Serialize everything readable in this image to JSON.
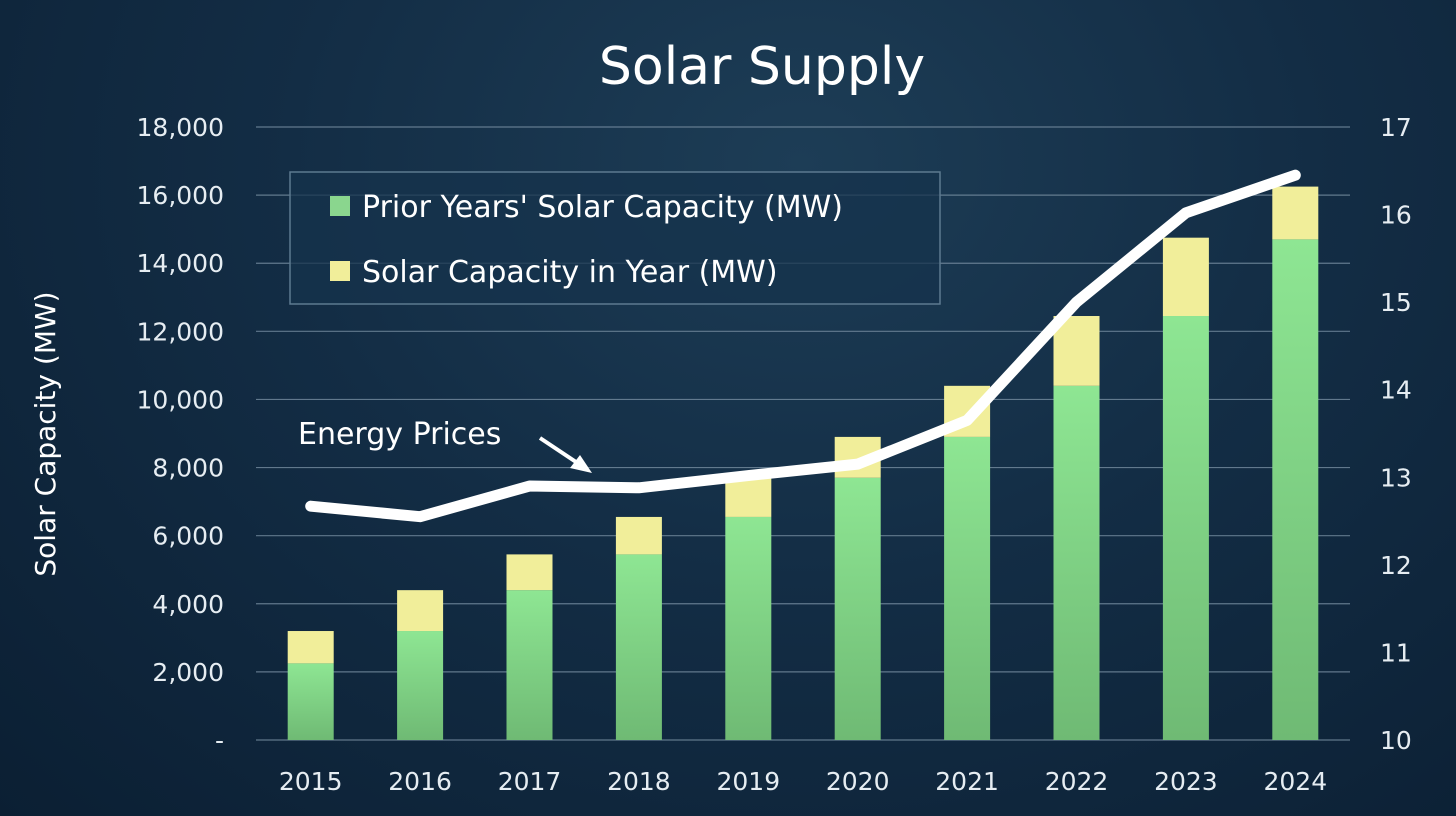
{
  "chart_data": {
    "type": "bar",
    "title": "Solar Supply",
    "ylabel": "Solar Capacity (MW)",
    "xlabel": "",
    "categories": [
      "2015",
      "2016",
      "2017",
      "2018",
      "2019",
      "2020",
      "2021",
      "2022",
      "2023",
      "2024"
    ],
    "stacked": true,
    "ylim": [
      0,
      18000
    ],
    "y_ticks": [
      {
        "value": 0,
        "label": "-"
      },
      {
        "value": 2000,
        "label": "2,000"
      },
      {
        "value": 4000,
        "label": "4,000"
      },
      {
        "value": 6000,
        "label": "6,000"
      },
      {
        "value": 8000,
        "label": "8,000"
      },
      {
        "value": 10000,
        "label": "10,000"
      },
      {
        "value": 12000,
        "label": "12,000"
      },
      {
        "value": 14000,
        "label": "14,000"
      },
      {
        "value": 16000,
        "label": "16,000"
      },
      {
        "value": 18000,
        "label": "18,000"
      }
    ],
    "y2lim": [
      10,
      17
    ],
    "y2_ticks": [
      "10",
      "11",
      "12",
      "13",
      "14",
      "15",
      "16",
      "17"
    ],
    "grid": true,
    "legend_position": "top-left",
    "series": [
      {
        "name": "Prior Years' Solar Capacity (MW)",
        "color": "#8ad68e",
        "values": [
          2250,
          3200,
          4400,
          5450,
          6550,
          7700,
          8900,
          10400,
          12450,
          14700
        ]
      },
      {
        "name": "Solar Capacity in Year (MW)",
        "color": "#f1ee9a",
        "values": [
          950,
          1200,
          1050,
          1100,
          1150,
          1200,
          1500,
          2050,
          2300,
          1550
        ]
      }
    ],
    "line_series": {
      "name": "",
      "axis": "right",
      "color": "#ffffff",
      "values": [
        12.67,
        12.55,
        12.9,
        12.88,
        13.02,
        13.15,
        13.65,
        15.0,
        16.02,
        16.45
      ]
    },
    "annotations": [
      {
        "text": "Energy Prices"
      }
    ]
  }
}
